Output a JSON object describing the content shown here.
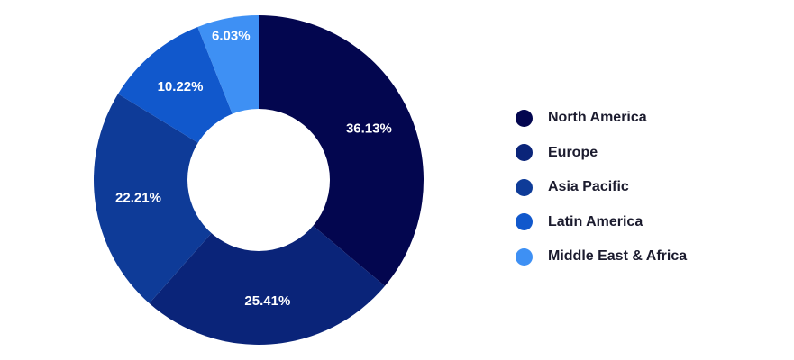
{
  "chart_data": {
    "type": "pie",
    "donut": true,
    "legend_position": "right",
    "categories": [
      "North America",
      "Europe",
      "Asia Pacific",
      "Latin America",
      "Middle East & Africa"
    ],
    "values": [
      36.13,
      25.41,
      22.21,
      10.22,
      6.03
    ],
    "labels": [
      "36.13%",
      "25.41%",
      "22.21%",
      "10.22%",
      "6.03%"
    ],
    "colors": [
      "#03064f",
      "#0a2479",
      "#0e3b98",
      "#1158cc",
      "#3e90f4"
    ]
  }
}
